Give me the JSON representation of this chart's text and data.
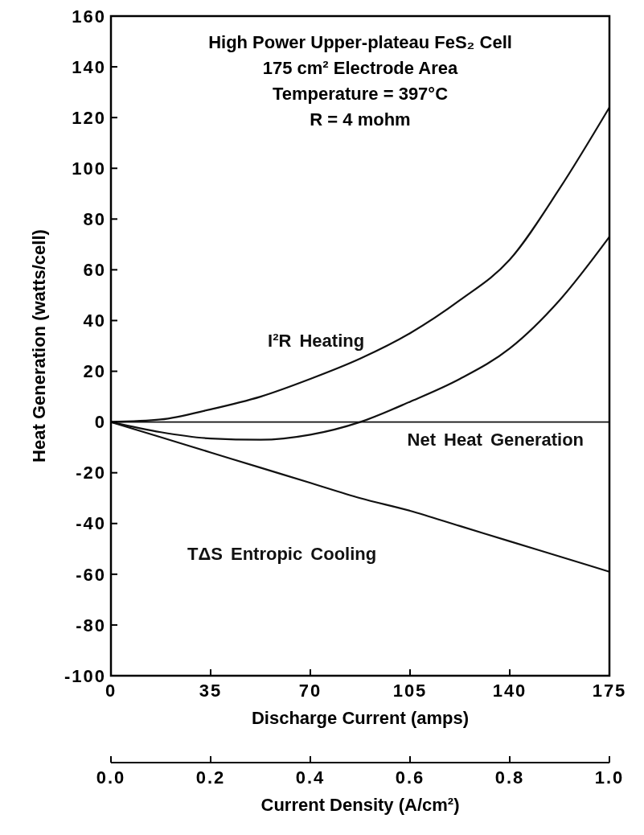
{
  "chart_data": {
    "type": "line",
    "title": "High Power Upper-plateau FeS₂ Cell",
    "subtitle": [
      "175 cm² Electrode Area",
      "Temperature = 397°C",
      "R = 4 mohm"
    ],
    "x": [
      0,
      17.5,
      35,
      52.5,
      70,
      87.5,
      105,
      122.5,
      140,
      157.5,
      175
    ],
    "series": [
      {
        "name": "I²R Heating",
        "color": "#111111",
        "values": [
          0,
          1,
          5,
          10,
          17,
          25,
          35,
          48,
          64,
          92,
          124
        ]
      },
      {
        "name": "Net Heat Generation",
        "color": "#111111",
        "values": [
          0,
          -4,
          -6.5,
          -7,
          -5,
          0,
          8,
          17,
          29,
          48,
          73
        ]
      },
      {
        "name": "TΔS Entropic Cooling",
        "color": "#111111",
        "values": [
          0,
          -6,
          -12,
          -18,
          -24,
          -30,
          -35,
          -41,
          -47,
          -53,
          -59
        ]
      }
    ],
    "xlabel": "Discharge Current (amps)",
    "ylabel": "Heat Generation (watts/cell)",
    "x2label": "Current Density (A/cm²)",
    "xlim": [
      0,
      175
    ],
    "xticks": [
      0,
      35,
      70,
      105,
      140,
      175
    ],
    "ylim": [
      -100,
      160
    ],
    "yticks": [
      -100,
      -80,
      -60,
      -40,
      -20,
      0,
      20,
      40,
      60,
      80,
      100,
      120,
      140,
      160
    ],
    "x2lim": [
      0,
      1
    ],
    "x2ticks": [
      {
        "value": 0,
        "label": "0.0"
      },
      {
        "value": 0.2,
        "label": "0.2"
      },
      {
        "value": 0.4,
        "label": "0.4"
      },
      {
        "value": 0.6,
        "label": "0.6"
      },
      {
        "value": 0.8,
        "label": "0.8"
      },
      {
        "value": 1,
        "label": "1.0"
      }
    ],
    "ref_lines": [
      {
        "axis": "y",
        "value": 0,
        "color": "#111111"
      }
    ],
    "grid": false,
    "marker": "none",
    "line_style": "solid"
  }
}
